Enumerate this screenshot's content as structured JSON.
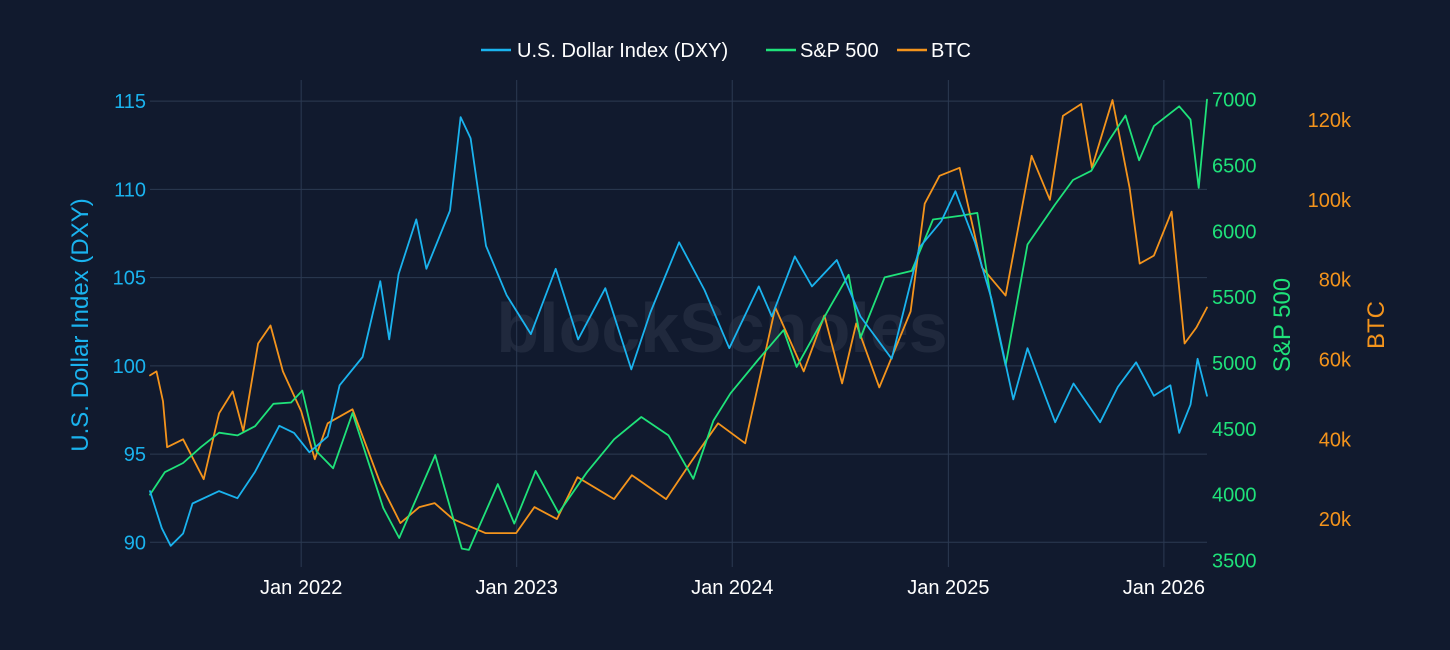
{
  "chart_data": {
    "type": "line",
    "watermark": "blockScholes",
    "x_ticks": [
      "Jan 2022",
      "Jan 2023",
      "Jan 2024",
      "Jan 2025",
      "Jan 2026"
    ],
    "x_range": [
      "2021-04-20",
      "2026-03-15"
    ],
    "axes": {
      "left": {
        "title": "U.S. Dollar Index (DXY)",
        "color": "#1ab3ee",
        "range": [
          88.6,
          116.2
        ],
        "ticks": [
          "90",
          "95",
          "100",
          "105",
          "110",
          "115"
        ]
      },
      "right1": {
        "title": "S&P 500",
        "color": "#1fe27a",
        "range": [
          3450,
          7150
        ],
        "ticks": [
          "3500",
          "4000",
          "4500",
          "5000",
          "5500",
          "6000",
          "6500",
          "7000"
        ]
      },
      "right2": {
        "title": "BTC",
        "color": "#f4941c",
        "range": [
          8000,
          130000
        ],
        "ticks": [
          "20k",
          "40k",
          "60k",
          "80k",
          "100k",
          "120k"
        ]
      }
    },
    "legend": {
      "placement": "top-center",
      "entries": [
        "U.S. Dollar Index (DXY)",
        "S&P 500",
        "BTC"
      ]
    },
    "series": [
      {
        "name": "U.S. Dollar Index (DXY)",
        "axis": "left",
        "color": "#1ab3ee",
        "points": [
          [
            "2021-04-20",
            92.9
          ],
          [
            "2021-05-10",
            90.8
          ],
          [
            "2021-05-25",
            89.8
          ],
          [
            "2021-06-15",
            90.5
          ],
          [
            "2021-07-01",
            92.2
          ],
          [
            "2021-08-15",
            92.9
          ],
          [
            "2021-09-15",
            92.5
          ],
          [
            "2021-10-15",
            94.0
          ],
          [
            "2021-11-25",
            96.6
          ],
          [
            "2021-12-20",
            96.2
          ],
          [
            "2022-01-15",
            95.1
          ],
          [
            "2022-02-15",
            96.0
          ],
          [
            "2022-03-07",
            98.9
          ],
          [
            "2022-04-15",
            100.5
          ],
          [
            "2022-05-15",
            104.8
          ],
          [
            "2022-05-30",
            101.5
          ],
          [
            "2022-06-15",
            105.2
          ],
          [
            "2022-07-15",
            108.3
          ],
          [
            "2022-08-01",
            105.5
          ],
          [
            "2022-09-10",
            108.8
          ],
          [
            "2022-09-28",
            114.1
          ],
          [
            "2022-10-15",
            112.9
          ],
          [
            "2022-11-10",
            106.8
          ],
          [
            "2022-12-15",
            104.0
          ],
          [
            "2023-01-25",
            101.8
          ],
          [
            "2023-03-08",
            105.5
          ],
          [
            "2023-04-15",
            101.5
          ],
          [
            "2023-05-31",
            104.4
          ],
          [
            "2023-07-14",
            99.8
          ],
          [
            "2023-08-15",
            103.0
          ],
          [
            "2023-10-03",
            107.0
          ],
          [
            "2023-11-15",
            104.3
          ],
          [
            "2023-12-27",
            101.0
          ],
          [
            "2024-02-15",
            104.5
          ],
          [
            "2024-03-08",
            102.8
          ],
          [
            "2024-04-16",
            106.2
          ],
          [
            "2024-05-15",
            104.5
          ],
          [
            "2024-06-26",
            106.0
          ],
          [
            "2024-08-05",
            102.8
          ],
          [
            "2024-09-27",
            100.4
          ],
          [
            "2024-11-13",
            106.7
          ],
          [
            "2024-12-20",
            108.2
          ],
          [
            "2025-01-13",
            109.9
          ],
          [
            "2025-02-15",
            107.0
          ],
          [
            "2025-03-15",
            103.8
          ],
          [
            "2025-04-21",
            98.1
          ],
          [
            "2025-05-15",
            101.0
          ],
          [
            "2025-06-15",
            98.2
          ],
          [
            "2025-07-01",
            96.8
          ],
          [
            "2025-08-01",
            99.0
          ],
          [
            "2025-09-15",
            96.8
          ],
          [
            "2025-10-15",
            98.8
          ],
          [
            "2025-11-15",
            100.2
          ],
          [
            "2025-12-15",
            98.3
          ],
          [
            "2026-01-12",
            98.9
          ],
          [
            "2026-01-27",
            96.2
          ],
          [
            "2026-02-15",
            97.8
          ],
          [
            "2026-02-27",
            100.4
          ],
          [
            "2026-03-15",
            98.3
          ]
        ]
      },
      {
        "name": "S&P 500",
        "axis": "right1",
        "color": "#1fe27a",
        "points": [
          [
            "2021-04-20",
            4000
          ],
          [
            "2021-05-15",
            4170
          ],
          [
            "2021-06-15",
            4240
          ],
          [
            "2021-07-15",
            4360
          ],
          [
            "2021-08-15",
            4470
          ],
          [
            "2021-09-15",
            4450
          ],
          [
            "2021-10-15",
            4520
          ],
          [
            "2021-11-15",
            4690
          ],
          [
            "2021-12-15",
            4700
          ],
          [
            "2022-01-03",
            4790
          ],
          [
            "2022-01-27",
            4330
          ],
          [
            "2022-02-24",
            4200
          ],
          [
            "2022-03-29",
            4620
          ],
          [
            "2022-05-20",
            3900
          ],
          [
            "2022-06-16",
            3670
          ],
          [
            "2022-08-16",
            4300
          ],
          [
            "2022-09-30",
            3590
          ],
          [
            "2022-10-12",
            3580
          ],
          [
            "2022-11-30",
            4080
          ],
          [
            "2022-12-28",
            3780
          ],
          [
            "2023-02-02",
            4180
          ],
          [
            "2023-03-13",
            3860
          ],
          [
            "2023-04-30",
            4170
          ],
          [
            "2023-06-15",
            4420
          ],
          [
            "2023-07-31",
            4590
          ],
          [
            "2023-09-15",
            4450
          ],
          [
            "2023-10-27",
            4120
          ],
          [
            "2023-11-30",
            4560
          ],
          [
            "2023-12-29",
            4770
          ],
          [
            "2024-02-15",
            5030
          ],
          [
            "2024-03-28",
            5250
          ],
          [
            "2024-04-19",
            4970
          ],
          [
            "2024-06-15",
            5430
          ],
          [
            "2024-07-16",
            5670
          ],
          [
            "2024-08-05",
            5190
          ],
          [
            "2024-09-15",
            5650
          ],
          [
            "2024-10-31",
            5700
          ],
          [
            "2024-12-06",
            6090
          ],
          [
            "2025-01-23",
            6120
          ],
          [
            "2025-02-19",
            6140
          ],
          [
            "2025-03-13",
            5520
          ],
          [
            "2025-04-08",
            4980
          ],
          [
            "2025-05-15",
            5900
          ],
          [
            "2025-06-30",
            6200
          ],
          [
            "2025-07-31",
            6390
          ],
          [
            "2025-08-31",
            6460
          ],
          [
            "2025-09-30",
            6690
          ],
          [
            "2025-10-28",
            6880
          ],
          [
            "2025-11-20",
            6540
          ],
          [
            "2025-12-15",
            6800
          ],
          [
            "2026-01-27",
            6950
          ],
          [
            "2026-02-15",
            6850
          ],
          [
            "2026-03-01",
            6330
          ],
          [
            "2026-03-15",
            7000
          ]
        ]
      },
      {
        "name": "BTC",
        "axis": "right2",
        "color": "#f4941c",
        "points": [
          [
            "2021-04-20",
            56000
          ],
          [
            "2021-05-01",
            57000
          ],
          [
            "2021-05-12",
            49500
          ],
          [
            "2021-05-19",
            38000
          ],
          [
            "2021-06-15",
            40000
          ],
          [
            "2021-07-20",
            30000
          ],
          [
            "2021-08-15",
            46500
          ],
          [
            "2021-09-07",
            52000
          ],
          [
            "2021-09-25",
            42000
          ],
          [
            "2021-10-20",
            64000
          ],
          [
            "2021-11-10",
            68500
          ],
          [
            "2021-12-01",
            57000
          ],
          [
            "2022-01-01",
            47000
          ],
          [
            "2022-01-24",
            35000
          ],
          [
            "2022-02-15",
            44000
          ],
          [
            "2022-03-29",
            47500
          ],
          [
            "2022-05-15",
            29000
          ],
          [
            "2022-06-18",
            19000
          ],
          [
            "2022-07-20",
            23000
          ],
          [
            "2022-08-15",
            24000
          ],
          [
            "2022-09-15",
            20000
          ],
          [
            "2022-11-09",
            16500
          ],
          [
            "2022-12-31",
            16500
          ],
          [
            "2023-01-31",
            23000
          ],
          [
            "2023-03-10",
            20000
          ],
          [
            "2023-04-14",
            30500
          ],
          [
            "2023-06-15",
            25000
          ],
          [
            "2023-07-15",
            31000
          ],
          [
            "2023-09-11",
            25000
          ],
          [
            "2023-10-24",
            34500
          ],
          [
            "2023-12-08",
            44000
          ],
          [
            "2024-01-23",
            39000
          ],
          [
            "2024-03-14",
            73000
          ],
          [
            "2024-05-01",
            57000
          ],
          [
            "2024-06-05",
            71000
          ],
          [
            "2024-07-05",
            54000
          ],
          [
            "2024-07-29",
            69000
          ],
          [
            "2024-09-06",
            53000
          ],
          [
            "2024-10-29",
            72000
          ],
          [
            "2024-11-22",
            99000
          ],
          [
            "2024-12-17",
            106000
          ],
          [
            "2025-01-20",
            108000
          ],
          [
            "2025-02-27",
            83000
          ],
          [
            "2025-04-08",
            76000
          ],
          [
            "2025-05-22",
            111000
          ],
          [
            "2025-06-22",
            100000
          ],
          [
            "2025-07-14",
            121000
          ],
          [
            "2025-08-14",
            124000
          ],
          [
            "2025-09-01",
            108000
          ],
          [
            "2025-10-06",
            125000
          ],
          [
            "2025-11-04",
            103000
          ],
          [
            "2025-11-21",
            84000
          ],
          [
            "2025-12-15",
            86000
          ],
          [
            "2026-01-14",
            97000
          ],
          [
            "2026-02-05",
            64000
          ],
          [
            "2026-02-25",
            68000
          ],
          [
            "2026-03-15",
            73000
          ]
        ]
      }
    ]
  }
}
